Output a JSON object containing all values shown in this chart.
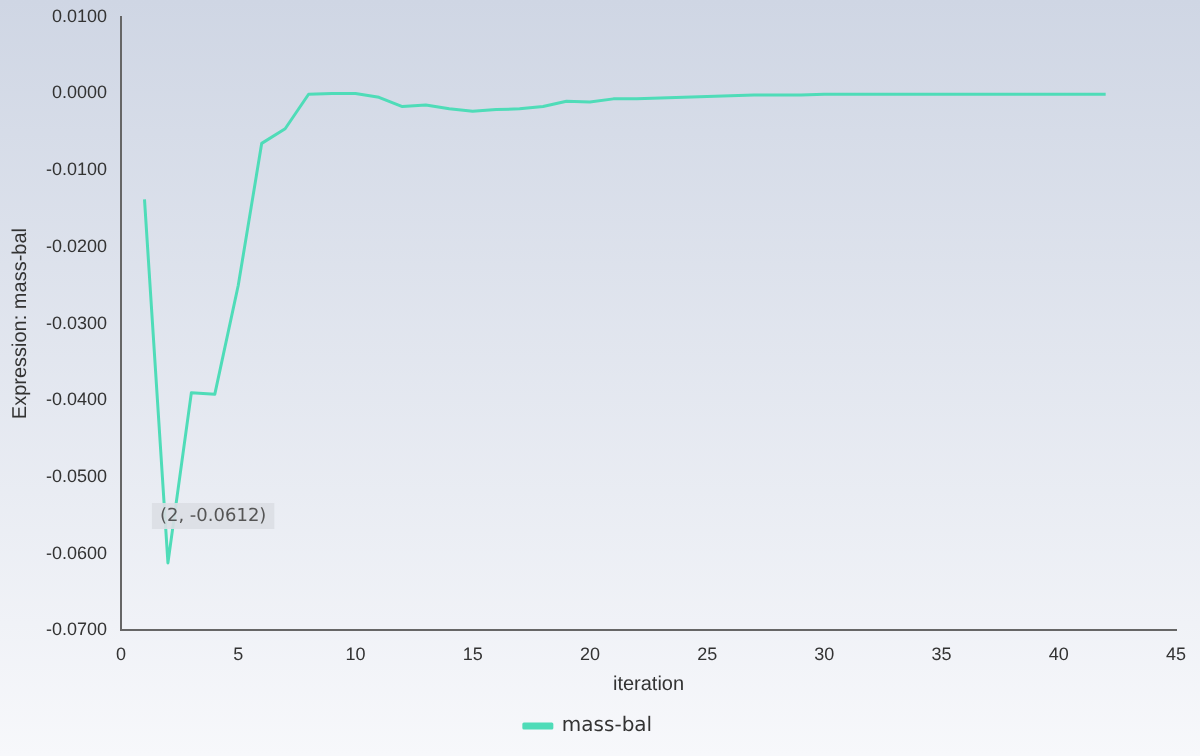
{
  "chart_data": {
    "type": "line",
    "xlabel": "iteration",
    "ylabel": "Expression: mass-bal",
    "x": [
      1,
      2,
      3,
      4,
      5,
      6,
      7,
      8,
      9,
      10,
      11,
      12,
      13,
      14,
      15,
      16,
      17,
      18,
      19,
      20,
      21,
      22,
      23,
      24,
      25,
      26,
      27,
      28,
      29,
      30,
      31,
      32,
      33,
      34,
      35,
      36,
      37,
      38,
      39,
      40,
      41,
      42
    ],
    "series": [
      {
        "name": "mass-bal",
        "color": "#4fdcb8",
        "values": [
          -0.0138,
          -0.0612,
          -0.039,
          -0.0392,
          -0.025,
          -0.0065,
          -0.0046,
          -0.0001,
          0,
          0,
          -0.0005,
          -0.0017,
          -0.0015,
          -0.002,
          -0.0023,
          -0.0021,
          -0.002,
          -0.0017,
          -0.001,
          -0.0011,
          -0.0007,
          -0.0007,
          -0.0006,
          -0.0005,
          -0.0004,
          -0.0003,
          -0.0002,
          -0.0002,
          -0.0002,
          -0.0001,
          -0.0001,
          -0.0001,
          -0.0001,
          -0.0001,
          -0.0001,
          -0.0001,
          -0.0001,
          -0.0001,
          -0.0001,
          -0.0001,
          -0.0001,
          -0.0001
        ]
      }
    ],
    "xlim": [
      0,
      45
    ],
    "xticks": [
      0,
      5,
      10,
      15,
      20,
      25,
      30,
      35,
      40,
      45
    ],
    "ylim": [
      -0.07,
      0.01
    ],
    "yticks": [
      {
        "value": -0.07,
        "label": "-0.0700"
      },
      {
        "value": -0.06,
        "label": "-0.0600"
      },
      {
        "value": -0.05,
        "label": "-0.0500"
      },
      {
        "value": -0.04,
        "label": "-0.0400"
      },
      {
        "value": -0.03,
        "label": "-0.0300"
      },
      {
        "value": -0.02,
        "label": "-0.0200"
      },
      {
        "value": -0.01,
        "label": "-0.0100"
      },
      {
        "value": 0,
        "label": "0.0000"
      },
      {
        "value": 0.01,
        "label": "0.0100"
      }
    ],
    "annotations": [
      {
        "text": "(2, -0.0612)",
        "x": 2,
        "y": -0.0612
      }
    ],
    "grid": false,
    "legend": "bottom",
    "marker": "none",
    "line_style": "solid"
  }
}
